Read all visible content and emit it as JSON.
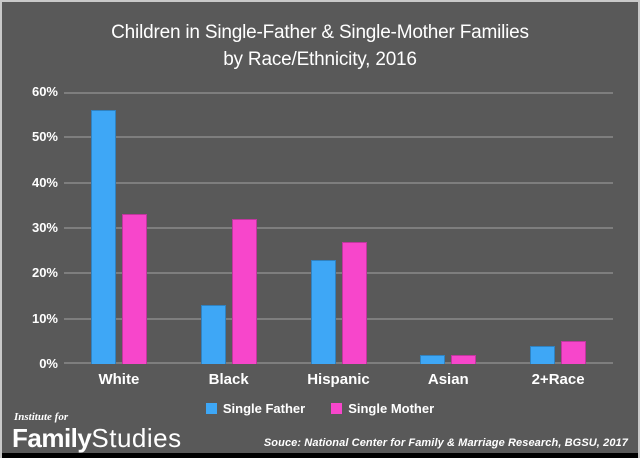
{
  "title": {
    "line1": "Children in Single-Father & Single-Mother Families",
    "line2": "by Race/Ethnicity, 2016"
  },
  "chart_data": {
    "type": "bar",
    "title": "Children in Single-Father & Single-Mother Families by Race/Ethnicity, 2016",
    "categories": [
      "White",
      "Black",
      "Hispanic",
      "Asian",
      "2+Race"
    ],
    "series": [
      {
        "name": "Single Father",
        "color": "#3EA7F6",
        "values": [
          56,
          13,
          23,
          2,
          4
        ]
      },
      {
        "name": "Single Mother",
        "color": "#F746CB",
        "values": [
          33,
          32,
          27,
          2,
          5
        ]
      }
    ],
    "ylim": [
      0,
      60
    ],
    "y_ticks": [
      0,
      10,
      20,
      30,
      40,
      50,
      60
    ],
    "y_tick_labels": [
      "0%",
      "10%",
      "20%",
      "30%",
      "40%",
      "50%",
      "60%"
    ],
    "grid": true,
    "legend_position": "bottom"
  },
  "footer": {
    "logo_line1": "Institute for",
    "logo_bold": "Family",
    "logo_light": "Studies",
    "source": "Souce: National Center for Family & Marriage Research, BGSU, 2017"
  },
  "colors": {
    "background": "#595959",
    "gridline": "#7E7E7E",
    "frame_border": "#C9C9C9",
    "text": "#FFFFFF",
    "single_father": "#3EA7F6",
    "single_mother": "#F746CB",
    "bottom_strip": "#000000"
  }
}
